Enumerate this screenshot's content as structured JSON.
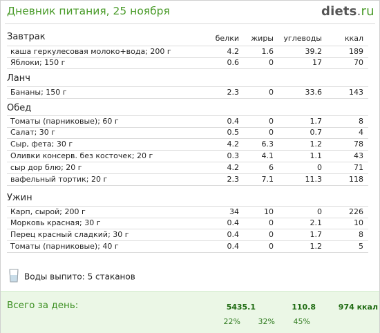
{
  "header": {
    "title": "Дневник питания, 25 ноября",
    "logo_main": "diets",
    "logo_dot": ".",
    "logo_tld": "ru"
  },
  "columns": {
    "protein": "белки",
    "fat": "жиры",
    "carbs": "углеводы",
    "kcal": "ккал"
  },
  "meals": [
    {
      "name": "Завтрак",
      "items": [
        {
          "name": "каша геркулесовая молоко+вода; 200 г",
          "protein": "4.2",
          "fat": "1.6",
          "carbs": "39.2",
          "kcal": "189"
        },
        {
          "name": "Яблоки; 150 г",
          "protein": "0.6",
          "fat": "0",
          "carbs": "17",
          "kcal": "70"
        }
      ]
    },
    {
      "name": "Ланч",
      "items": [
        {
          "name": "Бананы; 150 г",
          "protein": "2.3",
          "fat": "0",
          "carbs": "33.6",
          "kcal": "143"
        }
      ]
    },
    {
      "name": "Обед",
      "items": [
        {
          "name": "Томаты (парниковые); 60 г",
          "protein": "0.4",
          "fat": "0",
          "carbs": "1.7",
          "kcal": "8"
        },
        {
          "name": "Салат; 30 г",
          "protein": "0.5",
          "fat": "0",
          "carbs": "0.7",
          "kcal": "4"
        },
        {
          "name": "Сыр, фета; 30 г",
          "protein": "4.2",
          "fat": "6.3",
          "carbs": "1.2",
          "kcal": "78"
        },
        {
          "name": "Оливки консерв. без косточек; 20 г",
          "protein": "0.3",
          "fat": "4.1",
          "carbs": "1.1",
          "kcal": "43"
        },
        {
          "name": "сыр дор блю; 20 г",
          "protein": "4.2",
          "fat": "6",
          "carbs": "0",
          "kcal": "71"
        },
        {
          "name": "вафельный тортик; 20 г",
          "protein": "2.3",
          "fat": "7.1",
          "carbs": "11.3",
          "kcal": "118"
        }
      ]
    },
    {
      "name": "Ужин",
      "items": [
        {
          "name": "Карп, сырой; 200 г",
          "protein": "34",
          "fat": "10",
          "carbs": "0",
          "kcal": "226"
        },
        {
          "name": "Морковь красная; 30 г",
          "protein": "0.4",
          "fat": "0",
          "carbs": "2.1",
          "kcal": "10"
        },
        {
          "name": "Перец красный сладкий; 30 г",
          "protein": "0.4",
          "fat": "0",
          "carbs": "1.7",
          "kcal": "8"
        },
        {
          "name": "Томаты (парниковые); 40 г",
          "protein": "0.4",
          "fat": "0",
          "carbs": "1.2",
          "kcal": "5"
        }
      ]
    }
  ],
  "water": {
    "label": "Воды выпито:",
    "value": "5 стаканов"
  },
  "total": {
    "label": "Всего за день:",
    "protein": "54",
    "fat": "35.1",
    "carbs": "110.8",
    "kcal": "974 ккал",
    "protein_pct": "22%",
    "fat_pct": "32%",
    "carbs_pct": "45%"
  }
}
